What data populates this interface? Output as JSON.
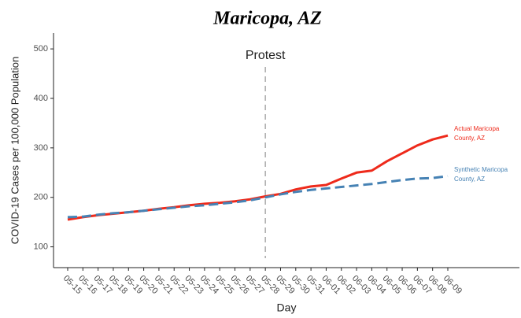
{
  "chart_data": {
    "type": "line",
    "title": "Maricopa, AZ",
    "x_label": "Day",
    "y_label": "COVID-19 Cases per 100,000 Population",
    "categories": [
      "05-15",
      "05-16",
      "05-17",
      "05-18",
      "05-19",
      "05-20",
      "05-21",
      "05-22",
      "05-23",
      "05-24",
      "05-25",
      "05-26",
      "05-27",
      "05-28",
      "05-29",
      "05-30",
      "05-31",
      "06-01",
      "06-02",
      "06-03",
      "06-04",
      "06-05",
      "06-06",
      "06-07",
      "06-08",
      "06-09"
    ],
    "series": [
      {
        "name": "Actual Maricopa County, AZ",
        "color": "#ee2a1b",
        "dashed": false,
        "values": [
          155,
          160,
          164,
          167,
          170,
          173,
          177,
          180,
          184,
          187,
          189,
          192,
          196,
          202,
          207,
          216,
          222,
          225,
          238,
          250,
          254,
          273,
          289,
          305,
          317,
          325
        ]
      },
      {
        "name": "Synthetic Maricopa County, AZ",
        "color": "#4682b4",
        "dashed": true,
        "values": [
          160,
          161,
          165,
          168,
          170,
          173,
          176,
          179,
          182,
          184,
          187,
          190,
          194,
          200,
          206,
          211,
          215,
          218,
          221,
          224,
          227,
          231,
          235,
          238,
          239,
          243
        ]
      }
    ],
    "annotation": {
      "label": "Protest",
      "category": "05-28"
    },
    "ylim": [
      58,
      532
    ],
    "yticks": [
      100,
      200,
      300,
      400,
      500
    ],
    "grid": false
  }
}
